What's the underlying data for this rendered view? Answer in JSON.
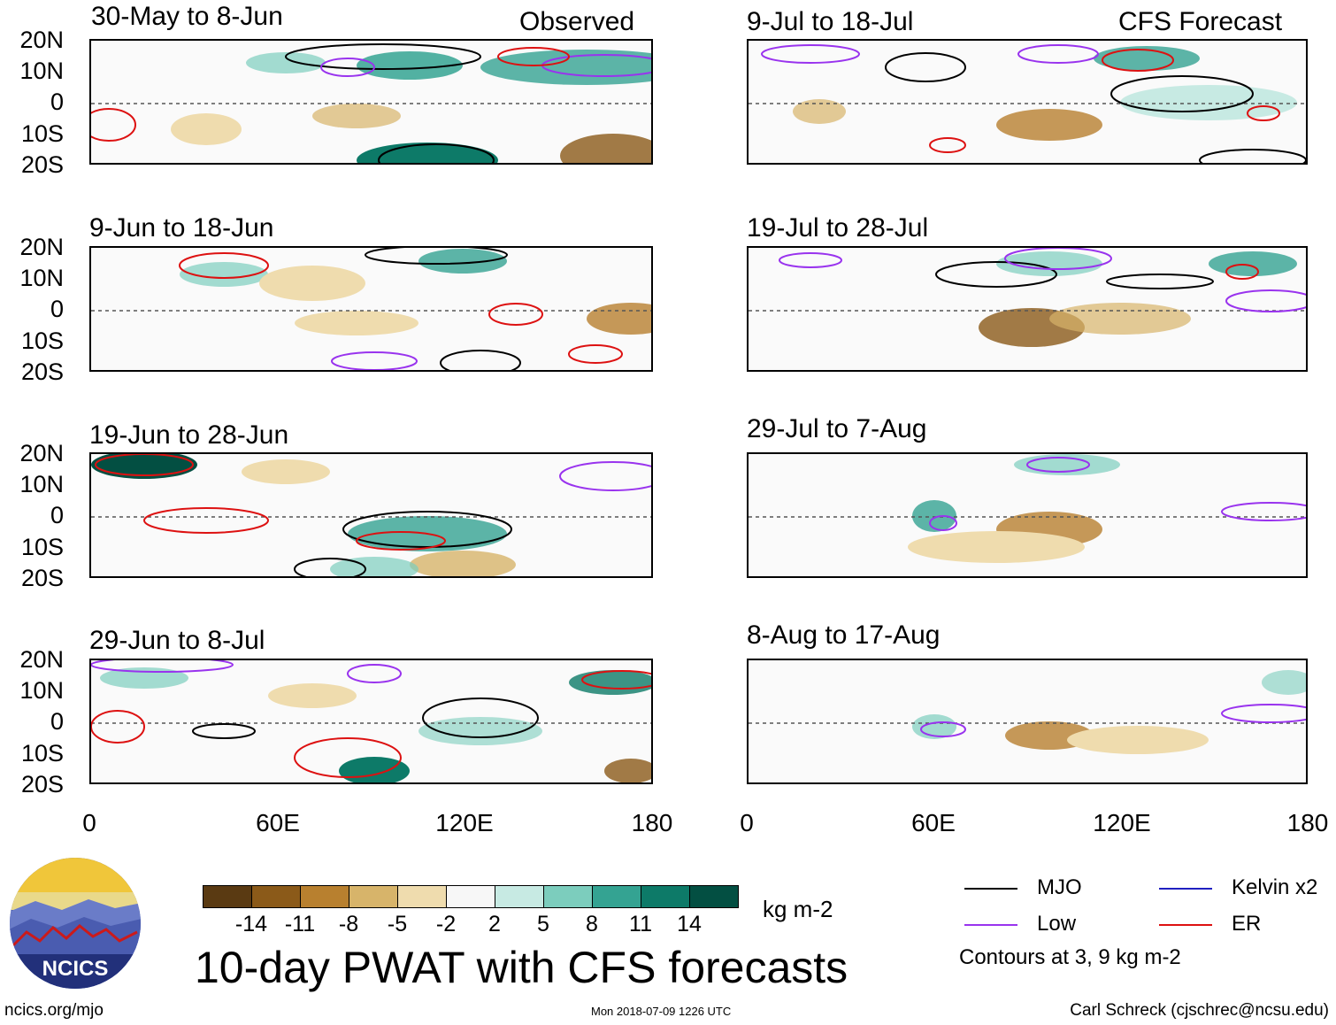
{
  "observed_label": "Observed",
  "forecast_label": "CFS Forecast",
  "panels": [
    {
      "title": "30-May to 8-Jun"
    },
    {
      "title": "9-Jun to 18-Jun"
    },
    {
      "title": "19-Jun to 28-Jun"
    },
    {
      "title": "29-Jun to 8-Jul"
    },
    {
      "title": "9-Jul to 18-Jul"
    },
    {
      "title": "19-Jul to 28-Jul"
    },
    {
      "title": "29-Jul to 7-Aug"
    },
    {
      "title": "8-Aug to 17-Aug"
    }
  ],
  "lat_ticks": [
    "20N",
    "10N",
    "0",
    "10S",
    "20S"
  ],
  "lon_ticks": [
    "0",
    "60E",
    "120E",
    "180"
  ],
  "colorbar": {
    "colors": [
      "#5a3a12",
      "#8b5a19",
      "#b8802f",
      "#d7b46a",
      "#efdcae",
      "#f7f7f7",
      "#c7eae3",
      "#7ccdbd",
      "#34a392",
      "#0d7a68",
      "#034f42"
    ],
    "labels": [
      "-14",
      "-11",
      "-8",
      "-5",
      "-2",
      "2",
      "5",
      "8",
      "11",
      "14"
    ],
    "units": "kg m-2"
  },
  "main_title": "10-day PWAT with CFS forecasts",
  "legend": {
    "mjo": "MJO",
    "kelvin": "Kelvin x2",
    "low": "Low",
    "er": "ER",
    "contours_note": "Contours at 3, 9 kg m-2",
    "colors": {
      "mjo": "#000000",
      "kelvin": "#2020c0",
      "low": "#9933ee",
      "er": "#dd1111"
    }
  },
  "logo_text": "NCICS",
  "footer_left": "ncics.org/mjo",
  "footer_center": "Mon 2018-07-09 1226 UTC",
  "footer_right": "Carl Schreck (cjschrec@ncsu.edu)"
}
